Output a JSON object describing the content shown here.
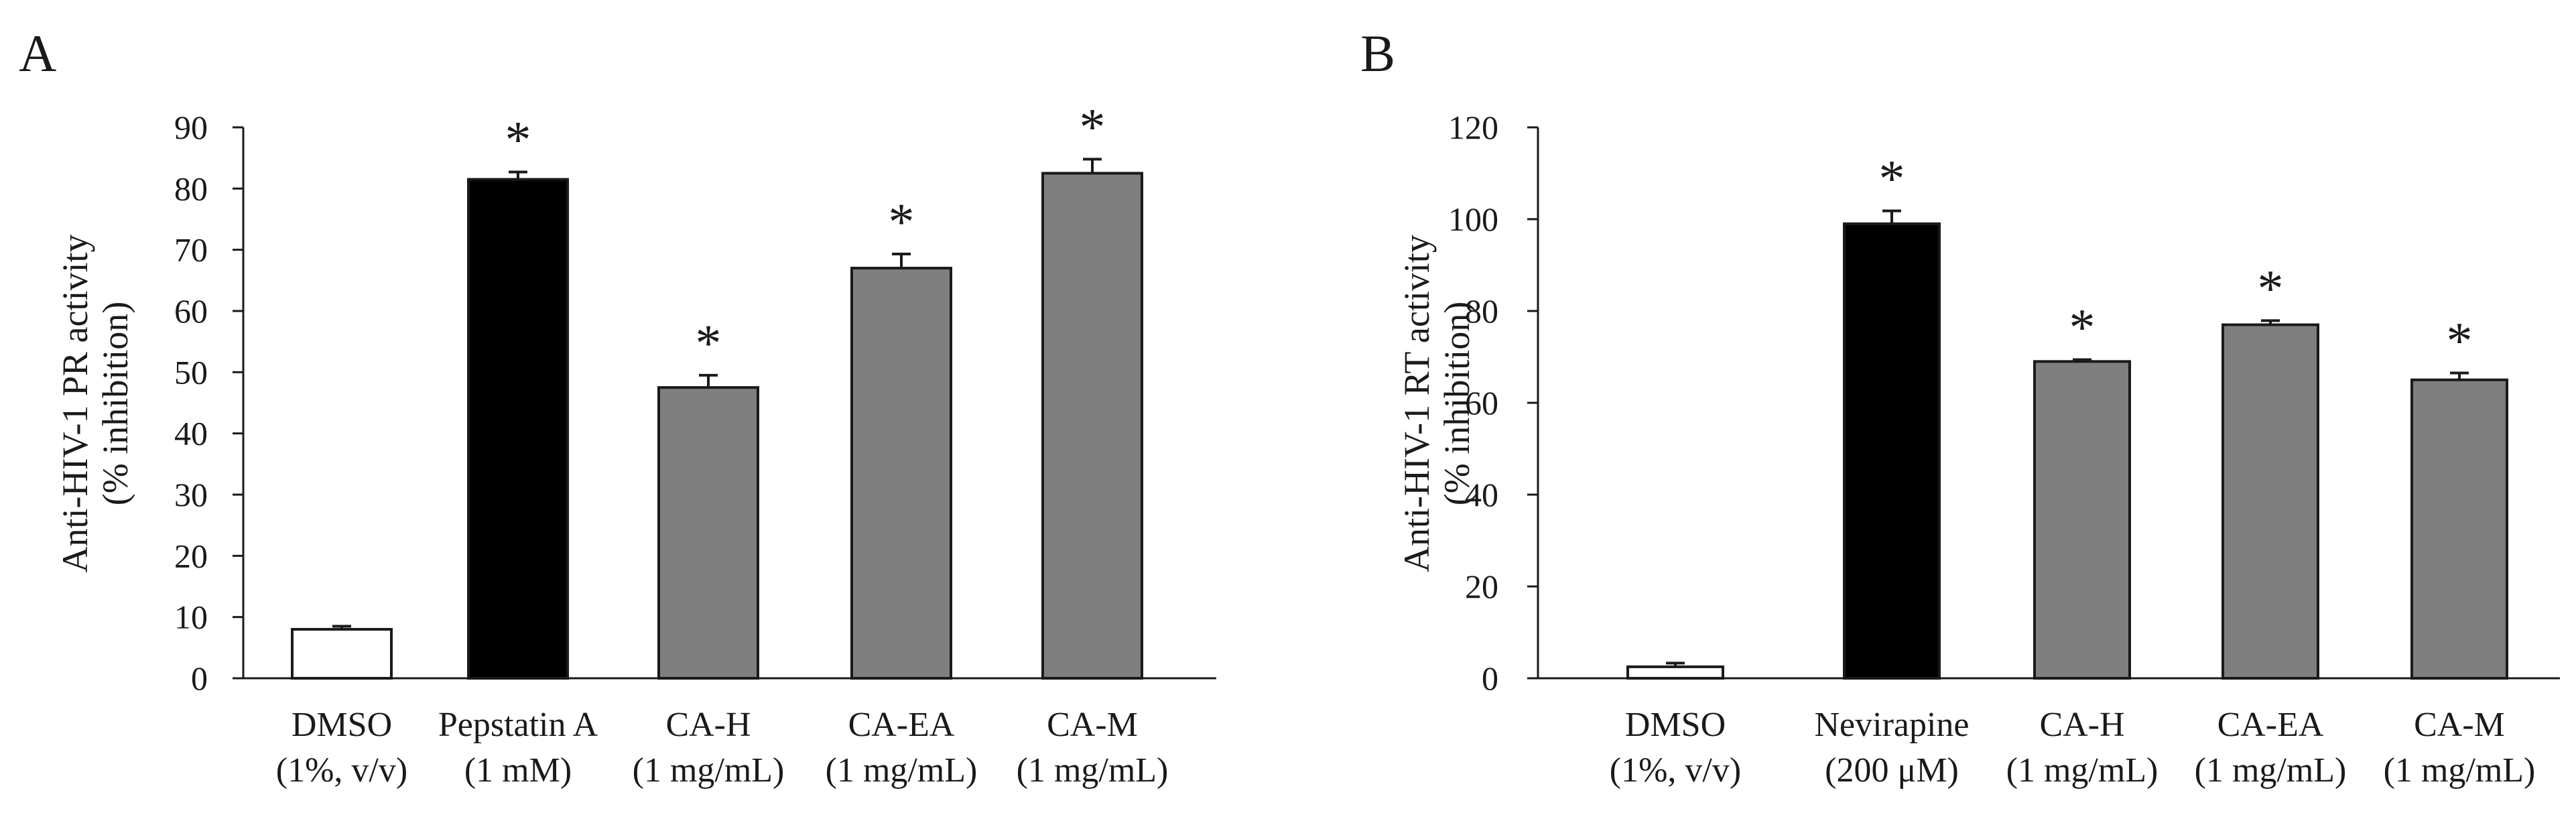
{
  "colors": {
    "white": "#ffffff",
    "black": "#000000",
    "gray": "#7f7f7f",
    "axis": "#1a1a1a"
  },
  "chart_data": [
    {
      "type": "bar",
      "panel_label": "A",
      "ylabel": [
        "Anti-HIV-1 PR activity",
        "(% inhibition)"
      ],
      "ylim": [
        0,
        90
      ],
      "yticks": [
        0,
        10,
        20,
        30,
        40,
        50,
        60,
        70,
        80,
        90
      ],
      "categories": [
        [
          "DMSO",
          "(1%, v/v)"
        ],
        [
          "Pepstatin A",
          "(1 mM)"
        ],
        [
          "CA-H",
          "(1 mg/mL)"
        ],
        [
          "CA-EA",
          "(1 mg/mL)"
        ],
        [
          "CA-M",
          "(1 mg/mL)"
        ]
      ],
      "values": [
        8,
        81.5,
        47.5,
        67,
        82.5
      ],
      "errors": [
        0.5,
        1.2,
        2.0,
        2.3,
        2.3
      ],
      "fills": [
        "white",
        "black",
        "gray",
        "gray",
        "gray"
      ],
      "annotations": [
        "",
        "*",
        "*",
        "*",
        "*"
      ]
    },
    {
      "type": "bar",
      "panel_label": "B",
      "ylabel": [
        "Anti-HIV-1 RT activity",
        "(% inhibition)"
      ],
      "ylim": [
        0,
        120
      ],
      "yticks": [
        0,
        20,
        40,
        60,
        80,
        100,
        120
      ],
      "categories": [
        [
          "DMSO",
          "(1%, v/v)"
        ],
        [
          "Nevirapine",
          "(200 μM)"
        ],
        [
          "CA-H",
          "(1 mg/mL)"
        ],
        [
          "CA-EA",
          "(1 mg/mL)"
        ],
        [
          "CA-M",
          "(1 mg/mL)"
        ]
      ],
      "values": [
        2.5,
        99,
        69,
        77,
        65
      ],
      "errors": [
        0.8,
        2.8,
        0.4,
        0.9,
        1.5
      ],
      "fills": [
        "white",
        "black",
        "gray",
        "gray",
        "gray"
      ],
      "annotations": [
        "",
        "*",
        "*",
        "*",
        "*"
      ]
    }
  ]
}
